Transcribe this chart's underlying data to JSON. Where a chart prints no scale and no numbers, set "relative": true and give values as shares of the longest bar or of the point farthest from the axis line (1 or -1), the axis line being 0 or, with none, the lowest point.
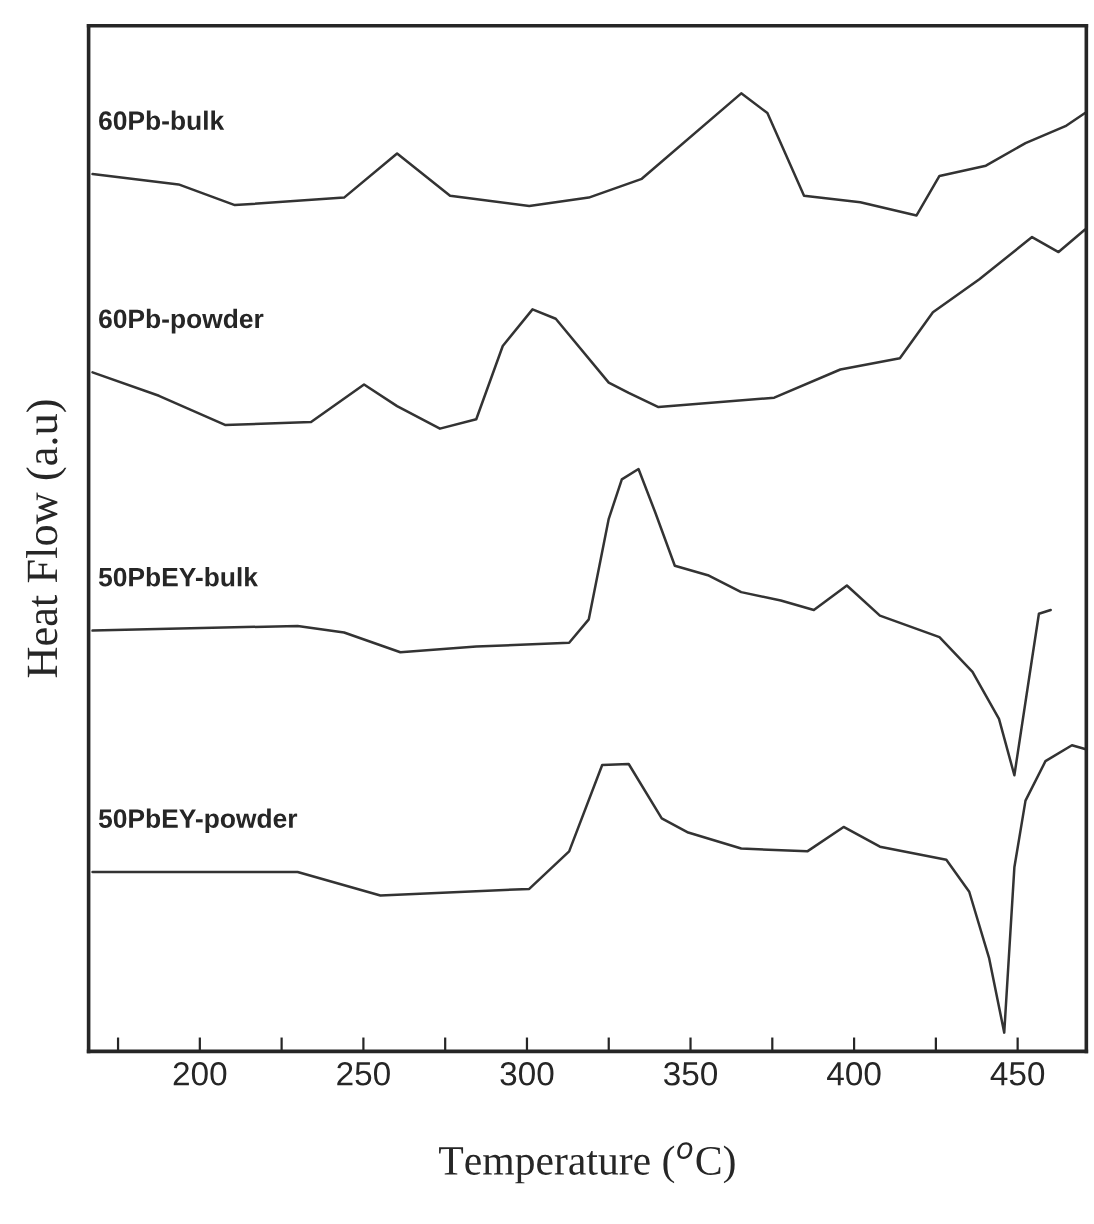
{
  "chart_data": {
    "type": "line",
    "relative": true,
    "xlabel": "Temperature ($^{o}$C)",
    "ylabel": "Heat Flow (a.u)",
    "xlim": [
      166,
      471
    ],
    "xticks": [
      {
        "value": 175,
        "label": null
      },
      200,
      {
        "value": 225,
        "label": null
      },
      250,
      {
        "value": 275,
        "label": null
      },
      300,
      {
        "value": 325,
        "label": null
      },
      350,
      {
        "value": 375,
        "label": null
      },
      400,
      {
        "value": 425,
        "label": null
      },
      450
    ],
    "tick_labels": "x",
    "grid": false,
    "legend": false,
    "marker": "none",
    "line_style": "solid",
    "series": [
      {
        "name": "60Pb-bulk",
        "color": "#333333",
        "x": [
          167.2,
          193.5,
          210.7,
          244.1,
          260.3,
          276.5,
          300.7,
          318.9,
          335.1,
          365.5,
          373.5,
          384.7,
          401.9,
          419.1,
          426.1,
          440.3,
          452.4,
          464.6,
          470.6
        ],
        "values": [
          0.914,
          0.903,
          0.881,
          0.889,
          0.936,
          0.891,
          0.88,
          0.889,
          0.909,
          1.0,
          0.979,
          0.891,
          0.884,
          0.87,
          0.912,
          0.923,
          0.947,
          0.965,
          0.979
        ]
      },
      {
        "name": "60Pb-powder",
        "color": "#333333",
        "x": [
          167.2,
          187.5,
          207.7,
          234.0,
          250.2,
          260.3,
          273.4,
          284.5,
          292.6,
          301.7,
          308.8,
          325.0,
          331.1,
          340.2,
          375.6,
          395.8,
          414.0,
          424.1,
          438.3,
          454.4,
          462.5,
          470.6
        ],
        "values": [
          0.703,
          0.678,
          0.647,
          0.65,
          0.69,
          0.667,
          0.643,
          0.653,
          0.731,
          0.77,
          0.76,
          0.692,
          0.681,
          0.666,
          0.676,
          0.706,
          0.718,
          0.767,
          0.802,
          0.847,
          0.831,
          0.855
        ]
      },
      {
        "name": "50PbEY-bulk",
        "color": "#333333",
        "x": [
          167.2,
          229.9,
          244.1,
          261.3,
          284.5,
          312.9,
          318.9,
          325.0,
          329.0,
          334.1,
          339.2,
          345.2,
          355.3,
          365.5,
          377.6,
          387.7,
          397.8,
          407.9,
          426.1,
          436.2,
          444.3,
          449.0,
          454.4,
          456.5,
          460.1
        ],
        "values": [
          0.428,
          0.433,
          0.426,
          0.405,
          0.411,
          0.415,
          0.44,
          0.547,
          0.589,
          0.6,
          0.554,
          0.497,
          0.487,
          0.469,
          0.46,
          0.45,
          0.476,
          0.444,
          0.421,
          0.384,
          0.334,
          0.274,
          0.398,
          0.446,
          0.45
        ]
      },
      {
        "name": "50PbEY-powder",
        "color": "#333333",
        "x": [
          167.2,
          229.9,
          255.2,
          300.7,
          312.9,
          323.0,
          331.1,
          341.2,
          349.3,
          365.5,
          385.7,
          396.8,
          407.9,
          428.2,
          435.2,
          441.3,
          445.9,
          449.0,
          452.4,
          458.5,
          466.6,
          470.6
        ],
        "values": [
          0.171,
          0.171,
          0.146,
          0.153,
          0.193,
          0.285,
          0.286,
          0.228,
          0.213,
          0.196,
          0.193,
          0.219,
          0.198,
          0.184,
          0.15,
          0.079,
          0.0,
          0.176,
          0.247,
          0.289,
          0.306,
          0.302
        ]
      }
    ]
  }
}
